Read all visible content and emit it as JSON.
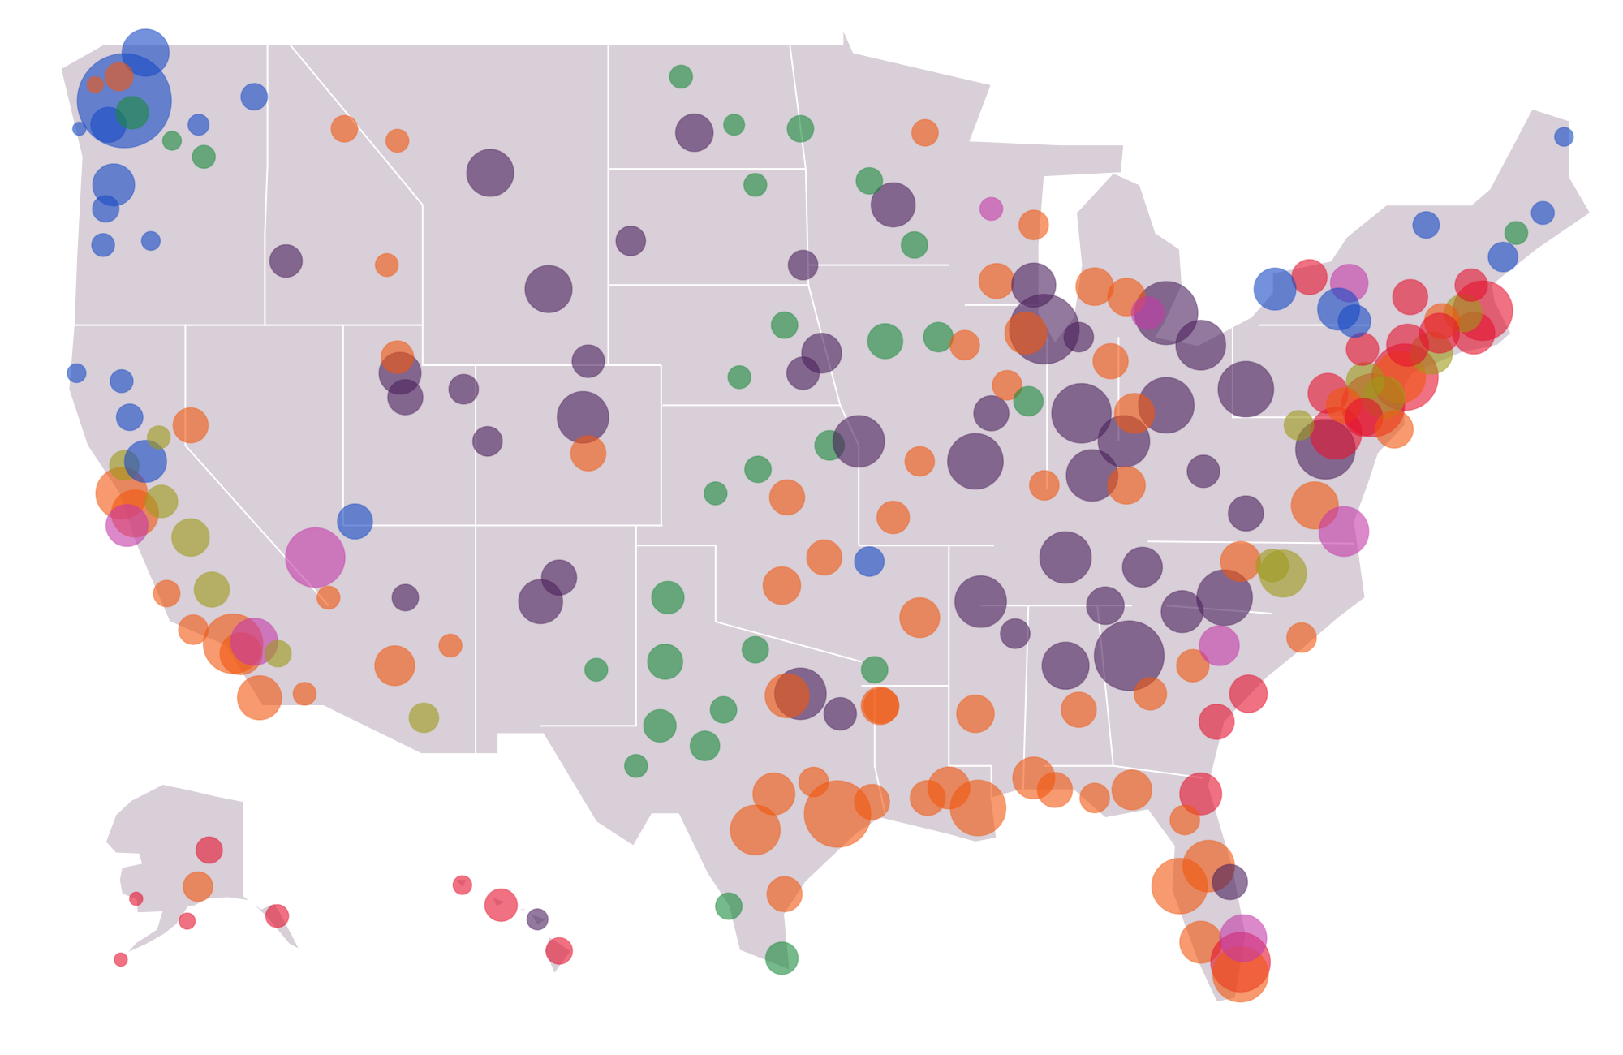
{
  "map": {
    "palette": [
      "#1749c4",
      "#f2570f",
      "#4b1f5c",
      "#1a8a3c",
      "#e5122e",
      "#c43aa8",
      "#9e9a1a",
      "#f3d6c6"
    ],
    "points": [
      [
        -122.3,
        47.6,
        100,
        0
      ],
      [
        -121.5,
        48.8,
        25,
        0
      ],
      [
        -122.9,
        47.0,
        14,
        0
      ],
      [
        -122.7,
        45.5,
        20,
        0
      ],
      [
        -123.0,
        44.9,
        8,
        0
      ],
      [
        -123.1,
        44.0,
        6,
        0
      ],
      [
        -117.4,
        47.7,
        8,
        0
      ],
      [
        -119.5,
        47.0,
        5,
        0
      ],
      [
        -120.5,
        46.6,
        4,
        3
      ],
      [
        -122.5,
        48.2,
        9,
        1
      ],
      [
        -123.4,
        48.0,
        3,
        1
      ],
      [
        -119.3,
        46.2,
        6,
        3
      ],
      [
        -124.0,
        46.9,
        2,
        0
      ],
      [
        -122.0,
        47.3,
        12,
        3
      ],
      [
        -121.3,
        44.1,
        4,
        0
      ],
      [
        -122.4,
        37.8,
        30,
        1
      ],
      [
        -121.9,
        37.3,
        25,
        1
      ],
      [
        -122.3,
        38.5,
        10,
        6
      ],
      [
        -121.5,
        38.6,
        20,
        0
      ],
      [
        -120.9,
        37.6,
        12,
        6
      ],
      [
        -119.8,
        36.7,
        16,
        6
      ],
      [
        -119.0,
        35.4,
        14,
        6
      ],
      [
        -118.2,
        34.05,
        40,
        1
      ],
      [
        -117.9,
        33.8,
        20,
        1
      ],
      [
        -117.4,
        34.1,
        25,
        5
      ],
      [
        -117.2,
        32.7,
        22,
        1
      ],
      [
        -122.1,
        39.7,
        8,
        0
      ],
      [
        -122.4,
        40.6,
        6,
        0
      ],
      [
        -124.1,
        40.8,
        4,
        0
      ],
      [
        -120.7,
        35.3,
        8,
        1
      ],
      [
        -119.7,
        34.4,
        10,
        1
      ],
      [
        -116.5,
        33.8,
        8,
        6
      ],
      [
        -115.5,
        32.8,
        6,
        1
      ],
      [
        -121.0,
        39.2,
        6,
        6
      ],
      [
        -122.2,
        37.0,
        20,
        5
      ],
      [
        -115.1,
        36.2,
        40,
        5
      ],
      [
        -119.8,
        39.5,
        14,
        1
      ],
      [
        -112.1,
        33.5,
        18,
        1
      ],
      [
        -111.0,
        32.2,
        10,
        6
      ],
      [
        -114.6,
        35.2,
        6,
        1
      ],
      [
        -111.7,
        35.2,
        8,
        2
      ],
      [
        -110.0,
        34.0,
        6,
        1
      ],
      [
        -111.9,
        40.8,
        20,
        2
      ],
      [
        -111.7,
        40.2,
        14,
        2
      ],
      [
        -112.0,
        41.2,
        12,
        1
      ],
      [
        -113.6,
        37.1,
        14,
        0
      ],
      [
        -108.5,
        45.8,
        25,
        2
      ],
      [
        -112.0,
        46.6,
        6,
        1
      ],
      [
        -114.0,
        46.9,
        8,
        1
      ],
      [
        -106.3,
        42.9,
        25,
        2
      ],
      [
        -104.8,
        41.1,
        12,
        2
      ],
      [
        -105.0,
        39.7,
        30,
        2
      ],
      [
        -104.8,
        38.8,
        14,
        1
      ],
      [
        -108.6,
        39.1,
        10,
        2
      ],
      [
        -106.6,
        35.1,
        22,
        2
      ],
      [
        -104.5,
        33.4,
        6,
        3
      ],
      [
        -103.2,
        44.1,
        10,
        2
      ],
      [
        -100.8,
        46.8,
        16,
        2
      ],
      [
        -96.8,
        46.9,
        8,
        3
      ],
      [
        -101.3,
        48.2,
        6,
        3
      ],
      [
        -105.9,
        35.7,
        14,
        2
      ],
      [
        -116.2,
        43.6,
        12,
        2
      ],
      [
        -112.4,
        43.5,
        6,
        1
      ],
      [
        -109.5,
        40.4,
        10,
        2
      ],
      [
        -98.5,
        45.5,
        6,
        3
      ],
      [
        -96.7,
        43.5,
        10,
        2
      ],
      [
        -99.3,
        47.0,
        5,
        3
      ],
      [
        -97.4,
        42.0,
        8,
        3
      ],
      [
        -96.0,
        41.3,
        18,
        2
      ],
      [
        -96.7,
        40.8,
        12,
        2
      ],
      [
        -99.1,
        40.7,
        6,
        3
      ],
      [
        -97.3,
        37.7,
        14,
        1
      ],
      [
        -95.7,
        39.0,
        10,
        3
      ],
      [
        -98.4,
        38.4,
        8,
        3
      ],
      [
        -100.0,
        37.8,
        6,
        3
      ],
      [
        -101.8,
        35.2,
        12,
        3
      ],
      [
        -101.9,
        33.6,
        14,
        3
      ],
      [
        -102.1,
        32.0,
        12,
        3
      ],
      [
        -100.4,
        31.5,
        10,
        3
      ],
      [
        -103.0,
        31.0,
        6,
        3
      ],
      [
        -99.7,
        32.4,
        8,
        3
      ],
      [
        -97.5,
        35.5,
        16,
        1
      ],
      [
        -95.9,
        36.2,
        14,
        1
      ],
      [
        -98.5,
        33.9,
        8,
        3
      ],
      [
        -97.8,
        30.3,
        20,
        1
      ],
      [
        -98.5,
        29.4,
        28,
        1
      ],
      [
        -96.8,
        32.8,
        30,
        2
      ],
      [
        -97.3,
        32.75,
        22,
        1
      ],
      [
        -95.4,
        29.8,
        50,
        1
      ],
      [
        -94.1,
        30.1,
        14,
        1
      ],
      [
        -97.4,
        27.8,
        14,
        1
      ],
      [
        -97.5,
        26.2,
        12,
        3
      ],
      [
        -99.5,
        27.5,
        8,
        3
      ],
      [
        -96.3,
        30.6,
        10,
        1
      ],
      [
        -95.3,
        32.3,
        12,
        2
      ],
      [
        -94.0,
        33.4,
        8,
        3
      ],
      [
        -93.8,
        32.5,
        16,
        1
      ],
      [
        -93.3,
        45.0,
        22,
        2
      ],
      [
        -94.2,
        45.6,
        8,
        3
      ],
      [
        -92.1,
        46.8,
        8,
        1
      ],
      [
        -93.6,
        41.6,
        14,
        3
      ],
      [
        -91.6,
        41.7,
        10,
        3
      ],
      [
        -90.6,
        41.5,
        10,
        1
      ],
      [
        -92.5,
        44.0,
        8,
        3
      ],
      [
        -89.4,
        43.1,
        14,
        1
      ],
      [
        -88.0,
        43.0,
        22,
        2
      ],
      [
        -88.0,
        44.5,
        10,
        1
      ],
      [
        -89.6,
        44.9,
        6,
        5
      ],
      [
        -87.6,
        41.9,
        55,
        2
      ],
      [
        -88.3,
        41.8,
        20,
        1
      ],
      [
        -89.6,
        39.8,
        14,
        2
      ],
      [
        -89.0,
        40.5,
        10,
        1
      ],
      [
        -88.2,
        40.1,
        10,
        3
      ],
      [
        -90.2,
        38.6,
        35,
        2
      ],
      [
        -94.6,
        39.1,
        30,
        2
      ],
      [
        -93.3,
        37.2,
        12,
        1
      ],
      [
        -92.3,
        38.6,
        10,
        1
      ],
      [
        -86.2,
        39.8,
        40,
        2
      ],
      [
        -85.1,
        41.1,
        14,
        1
      ],
      [
        -86.3,
        41.7,
        10,
        2
      ],
      [
        -87.6,
        38.0,
        10,
        1
      ],
      [
        -85.7,
        42.96,
        16,
        1
      ],
      [
        -83.0,
        42.3,
        45,
        2
      ],
      [
        -84.5,
        42.7,
        16,
        1
      ],
      [
        -83.7,
        42.3,
        12,
        5
      ],
      [
        -84.6,
        39.1,
        30,
        2
      ],
      [
        -83.0,
        40.0,
        35,
        2
      ],
      [
        -81.7,
        41.5,
        28,
        2
      ],
      [
        -84.2,
        39.8,
        18,
        1
      ],
      [
        -80.0,
        40.4,
        35,
        2
      ],
      [
        -77.6,
        43.2,
        14,
        4
      ],
      [
        -76.1,
        43.05,
        16,
        5
      ],
      [
        -78.9,
        42.9,
        20,
        0
      ],
      [
        -73.8,
        42.7,
        14,
        4
      ],
      [
        -85.8,
        38.25,
        30,
        2
      ],
      [
        -84.5,
        38.0,
        16,
        1
      ],
      [
        -86.8,
        36.2,
        30,
        2
      ],
      [
        -90.0,
        35.1,
        30,
        2
      ],
      [
        -85.3,
        35.0,
        16,
        2
      ],
      [
        -83.9,
        35.96,
        18,
        2
      ],
      [
        -92.3,
        34.7,
        18,
        1
      ],
      [
        -94.2,
        36.1,
        10,
        0
      ],
      [
        -91.2,
        30.45,
        20,
        1
      ],
      [
        -90.1,
        29.95,
        35,
        1
      ],
      [
        -93.75,
        32.5,
        14,
        1
      ],
      [
        -92.0,
        30.2,
        14,
        1
      ],
      [
        -90.2,
        32.3,
        16,
        1
      ],
      [
        -88.7,
        34.3,
        10,
        2
      ],
      [
        -86.8,
        33.5,
        25,
        2
      ],
      [
        -86.3,
        32.4,
        14,
        1
      ],
      [
        -88.0,
        30.7,
        20,
        1
      ],
      [
        -87.2,
        30.4,
        14,
        1
      ],
      [
        -84.4,
        33.75,
        55,
        2
      ],
      [
        -83.6,
        32.8,
        12,
        1
      ],
      [
        -81.1,
        32.1,
        14,
        4
      ],
      [
        -82.0,
        33.5,
        12,
        1
      ],
      [
        -81.0,
        34.0,
        18,
        5
      ],
      [
        -82.4,
        34.85,
        20,
        2
      ],
      [
        -80.8,
        35.2,
        35,
        2
      ],
      [
        -80.2,
        36.1,
        18,
        1
      ],
      [
        -78.6,
        35.8,
        25,
        6
      ],
      [
        -79.0,
        36.0,
        12,
        6
      ],
      [
        -77.9,
        34.2,
        10,
        1
      ],
      [
        -79.9,
        32.8,
        16,
        4
      ],
      [
        -77.4,
        37.5,
        25,
        1
      ],
      [
        -76.3,
        36.85,
        28,
        5
      ],
      [
        -77.0,
        38.9,
        40,
        2
      ],
      [
        -76.6,
        39.3,
        30,
        4
      ],
      [
        -78.0,
        39.5,
        10,
        6
      ],
      [
        -81.6,
        38.35,
        12,
        2
      ],
      [
        -80.0,
        37.3,
        14,
        2
      ],
      [
        -84.3,
        30.4,
        18,
        1
      ],
      [
        -81.7,
        30.3,
        20,
        4
      ],
      [
        -81.4,
        28.5,
        30,
        1
      ],
      [
        -82.5,
        28.0,
        35,
        1
      ],
      [
        -81.7,
        26.6,
        20,
        1
      ],
      [
        -80.2,
        26.1,
        40,
        4
      ],
      [
        -80.2,
        25.8,
        35,
        1
      ],
      [
        -80.1,
        26.7,
        25,
        5
      ],
      [
        -80.6,
        28.1,
        14,
        2
      ],
      [
        -82.3,
        29.65,
        10,
        1
      ],
      [
        -85.7,
        30.2,
        10,
        1
      ],
      [
        -75.2,
        40.0,
        45,
        4
      ],
      [
        -74.0,
        40.7,
        50,
        4
      ],
      [
        -74.2,
        40.7,
        30,
        1
      ],
      [
        -73.0,
        41.3,
        20,
        6
      ],
      [
        -71.4,
        41.8,
        20,
        4
      ],
      [
        -71.06,
        42.36,
        40,
        4
      ],
      [
        -71.8,
        42.3,
        16,
        6
      ],
      [
        -72.6,
        42.1,
        14,
        1
      ],
      [
        -72.7,
        41.8,
        18,
        4
      ],
      [
        -70.3,
        43.7,
        10,
        0
      ],
      [
        -71.5,
        43.0,
        12,
        4
      ],
      [
        -73.2,
        44.5,
        8,
        0
      ],
      [
        -76.9,
        40.3,
        18,
        4
      ],
      [
        -75.5,
        40.6,
        16,
        6
      ],
      [
        -76.3,
        40.0,
        14,
        1
      ],
      [
        -75.6,
        41.4,
        12,
        4
      ],
      [
        -74.8,
        40.2,
        20,
        6
      ],
      [
        -75.55,
        39.7,
        16,
        4
      ],
      [
        -69.8,
        44.3,
        6,
        3
      ],
      [
        -68.8,
        44.8,
        6,
        0
      ],
      [
        -68.0,
        46.7,
        4,
        0
      ],
      [
        -76.5,
        42.4,
        20,
        0
      ],
      [
        -75.9,
        42.1,
        12,
        0
      ],
      [
        -73.9,
        41.5,
        20,
        4
      ],
      [
        -74.4,
        39.4,
        16,
        1
      ],
      [
        -149.9,
        61.2,
        10,
        1
      ],
      [
        -147.7,
        64.8,
        8,
        4
      ],
      [
        -134.4,
        58.3,
        6,
        4
      ],
      [
        -162.0,
        60.0,
        2,
        4
      ],
      [
        -152.0,
        57.8,
        3,
        4
      ],
      [
        -165.0,
        54.0,
        2,
        4
      ],
      [
        -157.9,
        21.3,
        12,
        4
      ],
      [
        -155.5,
        19.7,
        8,
        4
      ],
      [
        -156.4,
        20.8,
        5,
        2
      ],
      [
        -159.5,
        22.0,
        4,
        4
      ]
    ]
  }
}
